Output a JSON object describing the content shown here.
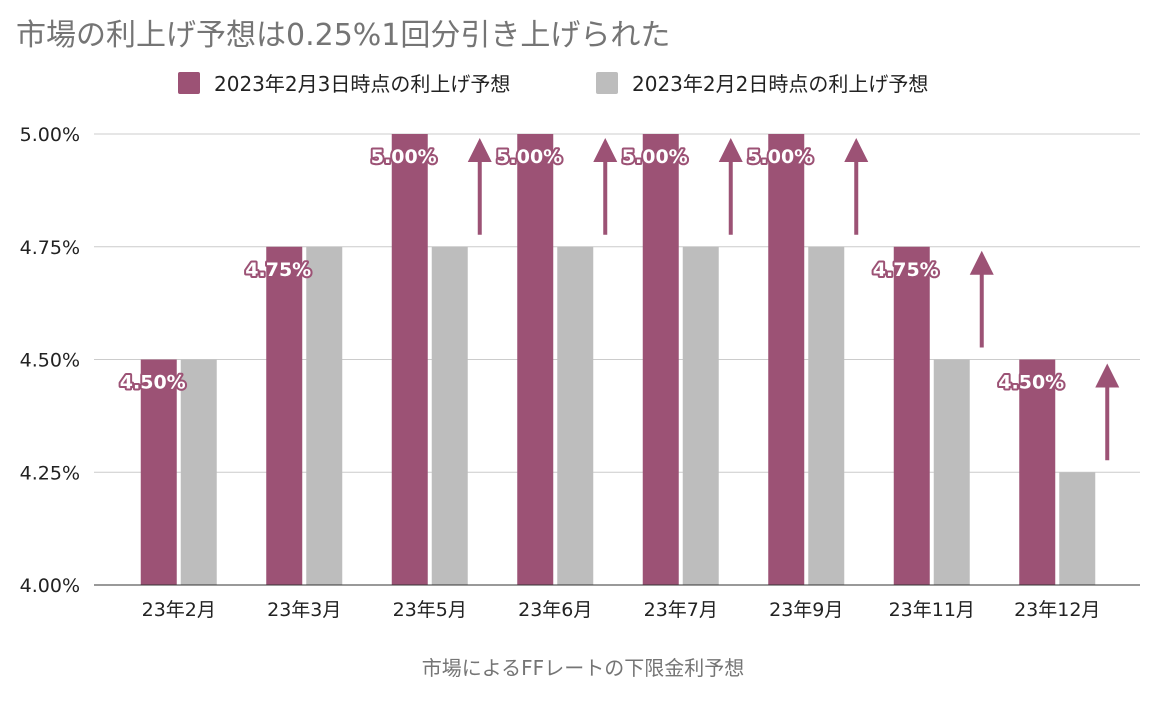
{
  "title": "市場の利上げ予想は0.25%1回分引き上げられた",
  "colors": {
    "primary": "#9c5275",
    "secondary": "#bdbdbd",
    "grid": "#cccccc",
    "arrow": "#9c5275"
  },
  "chart_data": {
    "type": "bar",
    "title": "市場の利上げ予想は0.25%1回分引き上げられた",
    "xlabel": "市場によるFFレートの下限金利予想",
    "ylabel": "",
    "categories": [
      "23年2月",
      "23年3月",
      "23年5月",
      "23年6月",
      "23年7月",
      "23年9月",
      "23年11月",
      "23年12月"
    ],
    "series": [
      {
        "name": "2023年2月3日時点の利上げ予想",
        "values": [
          4.5,
          4.75,
          5.0,
          5.0,
          5.0,
          5.0,
          4.75,
          4.5
        ]
      },
      {
        "name": "2023年2月2日時点の利上げ予想",
        "values": [
          4.5,
          4.75,
          4.75,
          4.75,
          4.75,
          4.75,
          4.5,
          4.25
        ]
      }
    ],
    "data_labels": [
      "4.50%",
      "4.75%",
      "5.00%",
      "5.00%",
      "5.00%",
      "5.00%",
      "4.75%",
      "4.50%"
    ],
    "ylim": [
      4.0,
      5.0
    ],
    "yticks": [
      {
        "value": 4.0,
        "label": "4.00%"
      },
      {
        "value": 4.25,
        "label": "4.25%"
      },
      {
        "value": 4.5,
        "label": "4.50%"
      },
      {
        "value": 4.75,
        "label": "4.75%"
      },
      {
        "value": 5.0,
        "label": "5.00%"
      }
    ],
    "annotations": [
      {
        "type": "up-arrow",
        "category": "23年5月",
        "from": 4.75,
        "to": 5.0
      },
      {
        "type": "up-arrow",
        "category": "23年6月",
        "from": 4.75,
        "to": 5.0
      },
      {
        "type": "up-arrow",
        "category": "23年7月",
        "from": 4.75,
        "to": 5.0
      },
      {
        "type": "up-arrow",
        "category": "23年9月",
        "from": 4.75,
        "to": 5.0
      },
      {
        "type": "up-arrow",
        "category": "23年11月",
        "from": 4.5,
        "to": 4.75
      },
      {
        "type": "up-arrow",
        "category": "23年12月",
        "from": 4.25,
        "to": 4.5
      }
    ],
    "grid": true,
    "legend_position": "top"
  }
}
